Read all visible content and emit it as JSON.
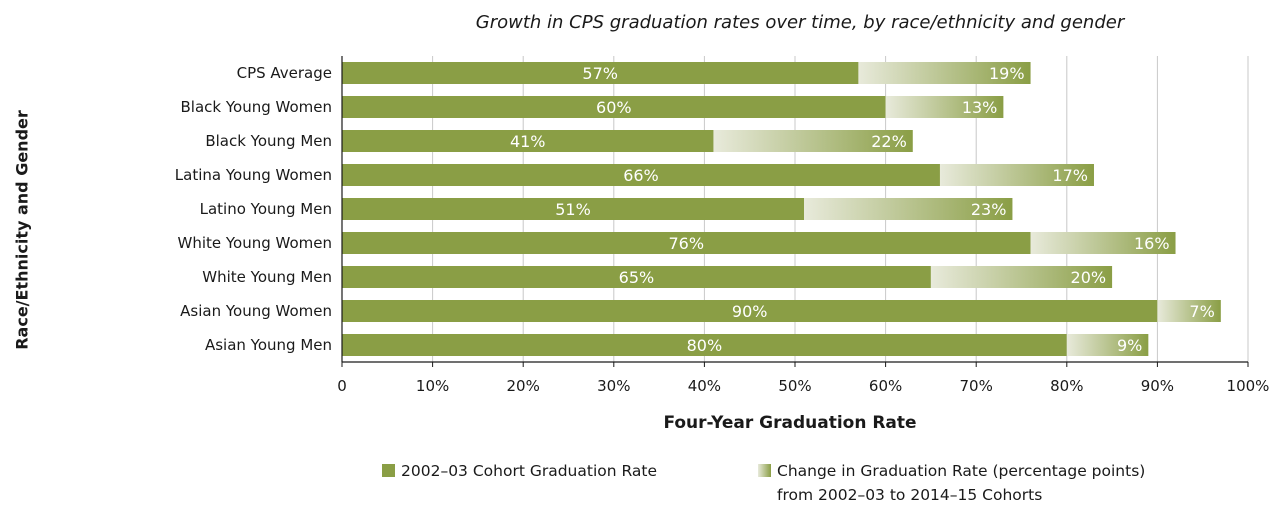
{
  "chart_data": {
    "type": "bar",
    "orientation": "horizontal",
    "stacked": true,
    "title": "Growth in CPS graduation rates over time, by race/ethnicity and gender",
    "xlabel": "Four-Year Graduation Rate",
    "ylabel": "Race/Ethnicity and Gender",
    "xlim": [
      0,
      100
    ],
    "x_ticks": [
      "0",
      "10%",
      "20%",
      "30%",
      "40%",
      "50%",
      "60%",
      "70%",
      "80%",
      "90%",
      "100%"
    ],
    "grid": true,
    "categories": [
      "CPS Average",
      "Black Young Women",
      "Black Young Men",
      "Latina Young Women",
      "Latino Young Men",
      "White Young Women",
      "White Young Men",
      "Asian Young Women",
      "Asian Young Men"
    ],
    "series": [
      {
        "name": "2002–03 Cohort Graduation Rate",
        "values": [
          57,
          60,
          41,
          66,
          51,
          76,
          65,
          90,
          80
        ],
        "labels": [
          "57%",
          "60%",
          "41%",
          "66%",
          "51%",
          "76%",
          "65%",
          "90%",
          "80%"
        ],
        "color": "#8a9e45"
      },
      {
        "name": "Change in Graduation Rate (percentage points) from 2002–03 to 2014–15 Cohorts",
        "values": [
          19,
          13,
          22,
          17,
          23,
          16,
          20,
          7,
          9
        ],
        "labels": [
          "19%",
          "13%",
          "22%",
          "17%",
          "23%",
          "16%",
          "20%",
          "7%",
          "9%"
        ],
        "color_gradient": [
          "#e8eadb",
          "#8a9e45"
        ]
      }
    ],
    "legend": {
      "placement": "bottom",
      "items": [
        {
          "line1": "2002–03 Cohort Graduation Rate"
        },
        {
          "line1": "Change in Graduation Rate (percentage points)",
          "line2": "from 2002–03 to 2014–15 Cohorts"
        }
      ]
    }
  }
}
